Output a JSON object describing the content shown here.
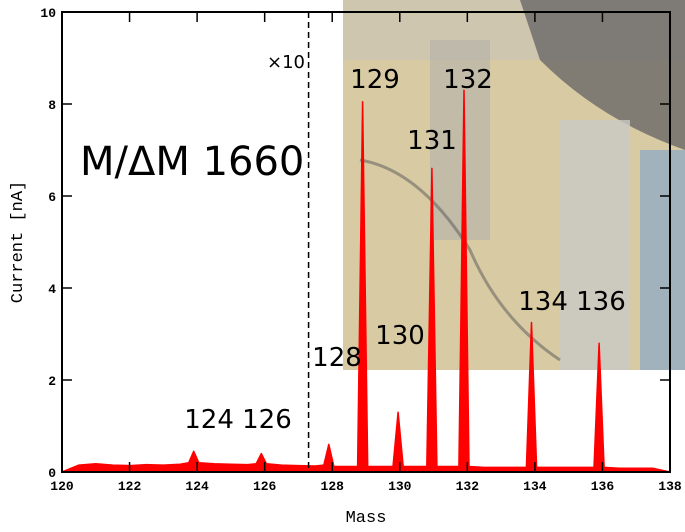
{
  "chart_data": {
    "type": "line",
    "xlabel": "Mass",
    "ylabel": "Current [nA]",
    "xlim": [
      120,
      138
    ],
    "ylim": [
      0,
      10
    ],
    "xticks": [
      120,
      122,
      124,
      126,
      128,
      130,
      132,
      134,
      136,
      138
    ],
    "yticks": [
      0,
      2,
      4,
      6,
      8,
      10
    ],
    "dashed_line_x": 127.3,
    "series": [
      {
        "color": "#ff0000",
        "x": [
          120,
          120.5,
          121,
          121.5,
          122,
          122.5,
          123,
          123.5,
          123.75,
          123.9,
          124.05,
          124.5,
          125,
          125.5,
          125.75,
          125.9,
          126.05,
          126.5,
          127,
          127.5,
          127.75,
          127.9,
          128.05,
          128.75,
          128.9,
          129.05,
          129.8,
          129.95,
          130.1,
          130.8,
          130.95,
          131.1,
          131.75,
          131.9,
          132.05,
          132.5,
          133,
          133.75,
          133.9,
          134.05,
          134.5,
          135,
          135.75,
          135.9,
          136.05,
          136.5,
          137,
          137.5,
          138
        ],
        "values": [
          0,
          0.15,
          0.18,
          0.15,
          0.14,
          0.16,
          0.15,
          0.17,
          0.2,
          0.45,
          0.2,
          0.18,
          0.17,
          0.16,
          0.18,
          0.4,
          0.18,
          0.15,
          0.14,
          0.13,
          0.15,
          0.6,
          0.12,
          0.12,
          8.05,
          0.12,
          0.12,
          1.3,
          0.12,
          0.12,
          6.6,
          0.12,
          0.12,
          8.3,
          0.12,
          0.1,
          0.1,
          0.1,
          3.25,
          0.1,
          0.1,
          0.1,
          0.1,
          2.8,
          0.1,
          0.08,
          0.08,
          0.08,
          0
        ]
      }
    ],
    "annotations": [
      "×10",
      "M/ΔM 1660",
      "129",
      "132",
      "131",
      "130",
      "128",
      "134 136",
      "124 126"
    ]
  }
}
